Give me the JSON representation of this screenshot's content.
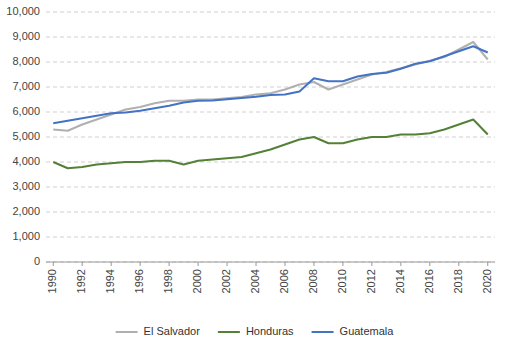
{
  "chart_data": {
    "type": "line",
    "x": [
      1990,
      1991,
      1992,
      1993,
      1994,
      1995,
      1996,
      1997,
      1998,
      1999,
      2000,
      2001,
      2002,
      2003,
      2004,
      2005,
      2006,
      2007,
      2008,
      2009,
      2010,
      2011,
      2012,
      2013,
      2014,
      2015,
      2016,
      2017,
      2018,
      2019,
      2020
    ],
    "series": [
      {
        "name": "El Salvador",
        "color": "#b0b0b0",
        "values": [
          5300,
          5250,
          5500,
          5700,
          5900,
          6100,
          6200,
          6350,
          6450,
          6450,
          6500,
          6500,
          6550,
          6600,
          6700,
          6750,
          6900,
          7100,
          7200,
          6900,
          7100,
          7300,
          7500,
          7600,
          7750,
          7900,
          8050,
          8200,
          8500,
          8800,
          8100
        ]
      },
      {
        "name": "Honduras",
        "color": "#538135",
        "values": [
          4000,
          3750,
          3800,
          3900,
          3950,
          4000,
          4000,
          4050,
          4050,
          3900,
          4050,
          4100,
          4150,
          4200,
          4350,
          4500,
          4700,
          4900,
          5000,
          4750,
          4750,
          4900,
          5000,
          5000,
          5100,
          5100,
          5150,
          5300,
          5500,
          5700,
          5100
        ]
      },
      {
        "name": "Guatemala",
        "color": "#4472c4",
        "values": [
          5550,
          5650,
          5750,
          5850,
          5950,
          5980,
          6050,
          6150,
          6250,
          6380,
          6450,
          6460,
          6510,
          6560,
          6610,
          6680,
          6700,
          6820,
          7350,
          7230,
          7230,
          7420,
          7520,
          7570,
          7730,
          7930,
          8030,
          8230,
          8430,
          8630,
          8380
        ]
      }
    ],
    "xlim": [
      1989.5,
      2020.5
    ],
    "xticks": [
      1990,
      1992,
      1994,
      1996,
      1998,
      2000,
      2002,
      2004,
      2006,
      2008,
      2010,
      2012,
      2014,
      2016,
      2018,
      2020
    ],
    "ylim": [
      0,
      10000
    ],
    "yticks": [
      0,
      {
        "value": 1000,
        "label": "1,000"
      },
      {
        "value": 2000,
        "label": "2,000"
      },
      {
        "value": 3000,
        "label": "3,000"
      },
      {
        "value": 4000,
        "label": "4,000"
      },
      {
        "value": 5000,
        "label": "5,000"
      },
      {
        "value": 6000,
        "label": "6,000"
      },
      {
        "value": 7000,
        "label": "7,000"
      },
      {
        "value": 8000,
        "label": "8,000"
      },
      {
        "value": 9000,
        "label": "9,000"
      },
      {
        "value": 10000,
        "label": "10,000"
      }
    ],
    "grid": true,
    "legend": "bottom"
  }
}
